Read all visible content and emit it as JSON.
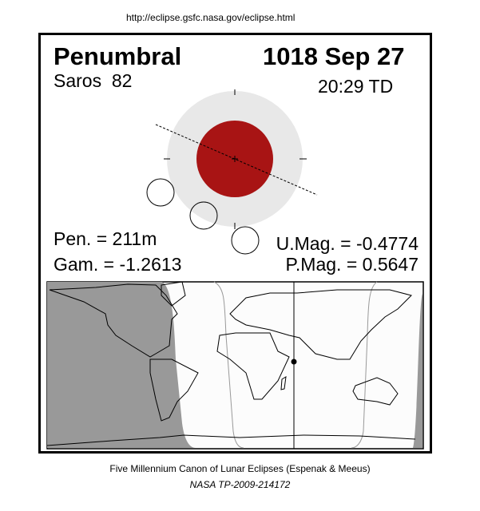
{
  "header": {
    "url": "http://eclipse.gsfc.nasa.gov/eclipse.html"
  },
  "eclipse": {
    "type": "Penumbral",
    "date": "1018 Sep 27",
    "saros": "Saros  82",
    "time": "20:29 TD",
    "pen": "Pen. = 211m",
    "gam": "Gam. = -1.2613",
    "umag": "U.Mag. = -0.4774",
    "pmag": "P.Mag. = 0.5647"
  },
  "colors": {
    "umbra": "#a81414",
    "penumbra": "#e8e8e8",
    "night": "#999999",
    "visible": "#fcfcfc"
  },
  "footer": {
    "line1": "Five Millennium Canon of Lunar Eclipses (Espenak & Meeus)",
    "line2": "NASA TP-2009-214172"
  }
}
